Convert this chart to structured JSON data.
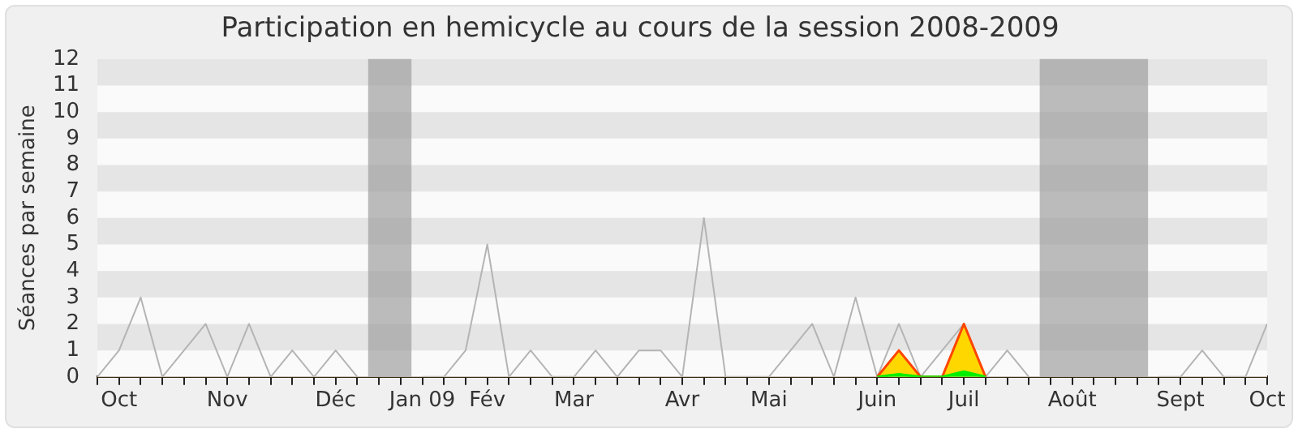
{
  "chart_data": {
    "type": "line",
    "title": "Participation en hemicycle au cours de la session 2008-2009",
    "ylabel": "Séances par semaine",
    "x": [
      "2008-09-29",
      "2008-10-06",
      "2008-10-13",
      "2008-10-20",
      "2008-10-27",
      "2008-11-03",
      "2008-11-10",
      "2008-11-17",
      "2008-11-24",
      "2008-12-01",
      "2008-12-08",
      "2008-12-15",
      "2008-12-22",
      "2008-12-29",
      "2009-01-05",
      "2009-01-12",
      "2009-01-19",
      "2009-01-26",
      "2009-02-02",
      "2009-02-09",
      "2009-02-16",
      "2009-02-23",
      "2009-03-02",
      "2009-03-09",
      "2009-03-16",
      "2009-03-23",
      "2009-03-30",
      "2009-04-06",
      "2009-04-13",
      "2009-04-20",
      "2009-04-27",
      "2009-05-04",
      "2009-05-11",
      "2009-05-18",
      "2009-05-25",
      "2009-06-01",
      "2009-06-08",
      "2009-06-15",
      "2009-06-22",
      "2009-06-29",
      "2009-07-06",
      "2009-07-13",
      "2009-07-20",
      "2009-07-27",
      "2009-08-03",
      "2009-08-10",
      "2009-08-17",
      "2009-08-24",
      "2009-08-31",
      "2009-09-07",
      "2009-09-14",
      "2009-09-21",
      "2009-09-28",
      "2009-10-05",
      "2009-10-12"
    ],
    "series": [
      {
        "color": "#b4b4b4",
        "values": [
          0,
          1,
          3,
          0,
          1,
          2,
          0,
          2,
          0,
          1,
          0,
          1,
          0,
          null,
          null,
          0,
          0,
          1,
          5,
          0,
          1,
          0,
          0,
          1,
          0,
          1,
          1,
          0,
          6,
          0,
          0,
          0,
          1,
          2,
          0,
          3,
          0,
          2,
          0,
          1,
          2,
          0,
          1,
          0,
          null,
          null,
          null,
          null,
          null,
          0,
          0,
          1,
          0,
          0,
          2
        ]
      },
      {
        "type": "area",
        "color": "#ffd700",
        "x": [
          "2009-06-08",
          "2009-06-15",
          "2009-06-22",
          "2009-06-29",
          "2009-07-06",
          "2009-07-13"
        ],
        "values": [
          0,
          1,
          0,
          0,
          2,
          0
        ]
      },
      {
        "type": "area",
        "color": "#00ee00",
        "x": [
          "2009-06-08",
          "2009-06-15",
          "2009-06-22",
          "2009-06-29",
          "2009-07-06",
          "2009-07-13"
        ],
        "values": [
          0,
          0.1,
          0,
          0,
          0.2,
          0
        ]
      }
    ],
    "xlim": [
      "2008-09-29",
      "2009-10-12"
    ],
    "xticks": [
      {
        "value": "2008-09-29",
        "label": null
      },
      {
        "value": "2008-10-06",
        "label": "Oct"
      },
      {
        "value": "2008-10-13",
        "label": null
      },
      {
        "value": "2008-10-20",
        "label": null
      },
      {
        "value": "2008-10-27",
        "label": null
      },
      {
        "value": "2008-11-03",
        "label": null
      },
      {
        "value": "2008-11-10",
        "label": "Nov"
      },
      {
        "value": "2008-11-17",
        "label": null
      },
      {
        "value": "2008-11-24",
        "label": null
      },
      {
        "value": "2008-12-01",
        "label": null
      },
      {
        "value": "2008-12-08",
        "label": null
      },
      {
        "value": "2008-12-15",
        "label": "Déc"
      },
      {
        "value": "2008-12-22",
        "label": null
      },
      {
        "value": "2008-12-29",
        "label": null
      },
      {
        "value": "2009-01-05",
        "label": null
      },
      {
        "value": "2009-01-12",
        "label": "Jan 09"
      },
      {
        "value": "2009-01-19",
        "label": null
      },
      {
        "value": "2009-01-26",
        "label": null
      },
      {
        "value": "2009-02-02",
        "label": "Fév"
      },
      {
        "value": "2009-02-09",
        "label": null
      },
      {
        "value": "2009-02-16",
        "label": null
      },
      {
        "value": "2009-02-23",
        "label": null
      },
      {
        "value": "2009-03-02",
        "label": "Mar"
      },
      {
        "value": "2009-03-09",
        "label": null
      },
      {
        "value": "2009-03-16",
        "label": null
      },
      {
        "value": "2009-03-23",
        "label": null
      },
      {
        "value": "2009-03-30",
        "label": null
      },
      {
        "value": "2009-04-06",
        "label": "Avr"
      },
      {
        "value": "2009-04-13",
        "label": null
      },
      {
        "value": "2009-04-20",
        "label": null
      },
      {
        "value": "2009-04-27",
        "label": null
      },
      {
        "value": "2009-05-04",
        "label": "Mai"
      },
      {
        "value": "2009-05-11",
        "label": null
      },
      {
        "value": "2009-05-18",
        "label": null
      },
      {
        "value": "2009-05-25",
        "label": null
      },
      {
        "value": "2009-06-01",
        "label": null
      },
      {
        "value": "2009-06-08",
        "label": "Juin"
      },
      {
        "value": "2009-06-15",
        "label": null
      },
      {
        "value": "2009-06-22",
        "label": null
      },
      {
        "value": "2009-06-29",
        "label": null
      },
      {
        "value": "2009-07-06",
        "label": "Juil"
      },
      {
        "value": "2009-07-13",
        "label": null
      },
      {
        "value": "2009-07-20",
        "label": null
      },
      {
        "value": "2009-07-27",
        "label": null
      },
      {
        "value": "2009-08-03",
        "label": null
      },
      {
        "value": "2009-08-10",
        "label": "Août"
      },
      {
        "value": "2009-08-17",
        "label": null
      },
      {
        "value": "2009-08-24",
        "label": null
      },
      {
        "value": "2009-08-31",
        "label": null
      },
      {
        "value": "2009-09-07",
        "label": null
      },
      {
        "value": "2009-09-14",
        "label": "Sept"
      },
      {
        "value": "2009-09-21",
        "label": null
      },
      {
        "value": "2009-09-28",
        "label": null
      },
      {
        "value": "2009-10-05",
        "label": null
      },
      {
        "value": "2009-10-12",
        "label": "Oct"
      }
    ],
    "ylim": [
      0,
      12
    ],
    "yticks": [
      0,
      1,
      2,
      3,
      4,
      5,
      6,
      7,
      8,
      9,
      10,
      11,
      12
    ],
    "legend": false,
    "marker": "none",
    "line_style": "solid",
    "bands": [
      {
        "axis": "x",
        "from": "2008-12-25T12:00",
        "to": "2009-01-08T12:00",
        "color": "#a0a0a0"
      },
      {
        "axis": "x",
        "from": "2009-07-30T12:00",
        "to": "2009-09-03T12:00",
        "color": "#a0a0a0"
      }
    ]
  }
}
